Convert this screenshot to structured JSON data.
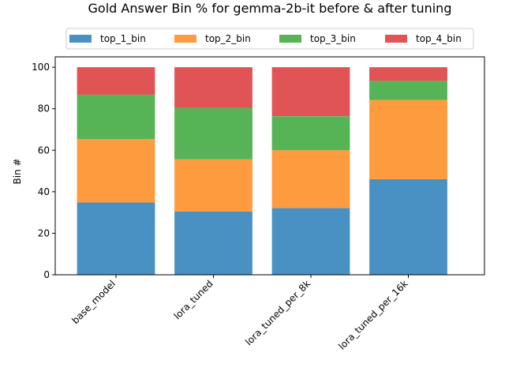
{
  "chart_data": {
    "type": "bar",
    "stacked": true,
    "title": "Gold Answer Bin % for gemma-2b-it before & after tuning",
    "xlabel": "",
    "ylabel": "Bin #",
    "ylim": [
      0,
      105
    ],
    "yticks": [
      0,
      20,
      40,
      60,
      80,
      100
    ],
    "grid": false,
    "legend_position": "top-center",
    "categories": [
      "base_model",
      "lora_tuned",
      "lora_tuned_per_8k",
      "lora_tuned_per_16k"
    ],
    "series": [
      {
        "name": "top_1_bin",
        "color": "#4a91c3",
        "values": [
          34.8,
          30.5,
          32.1,
          46.1
        ]
      },
      {
        "name": "top_2_bin",
        "color": "#ff9b3f",
        "values": [
          30.6,
          25.1,
          27.9,
          38.1
        ]
      },
      {
        "name": "top_3_bin",
        "color": "#56b356",
        "values": [
          21.3,
          24.7,
          16.4,
          9.2
        ]
      },
      {
        "name": "top_4_bin",
        "color": "#e05456",
        "values": [
          13.3,
          19.7,
          23.6,
          6.6
        ]
      }
    ]
  }
}
